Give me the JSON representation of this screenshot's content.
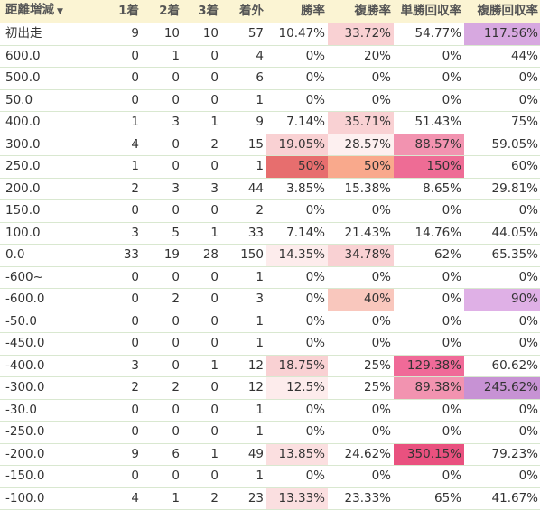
{
  "table": {
    "columns": [
      "距離増減",
      "1着",
      "2着",
      "3着",
      "着外",
      "勝率",
      "複勝率",
      "単勝回収率",
      "複勝回収率"
    ],
    "sort_icon": "sort-down-icon",
    "rows": [
      {
        "label": "初出走",
        "cells": [
          "9",
          "10",
          "10",
          "57",
          "10.47%",
          "33.72%",
          "54.77%",
          "117.56%"
        ],
        "bg": [
          "",
          "",
          "",
          "",
          "",
          "#f9d1d3",
          "",
          "#d7a8e0"
        ]
      },
      {
        "label": "600.0",
        "cells": [
          "0",
          "1",
          "0",
          "4",
          "0%",
          "20%",
          "0%",
          "44%"
        ],
        "bg": [
          "",
          "",
          "",
          "",
          "",
          "",
          "",
          ""
        ]
      },
      {
        "label": "500.0",
        "cells": [
          "0",
          "0",
          "0",
          "6",
          "0%",
          "0%",
          "0%",
          "0%"
        ],
        "bg": [
          "",
          "",
          "",
          "",
          "",
          "",
          "",
          ""
        ]
      },
      {
        "label": "50.0",
        "cells": [
          "0",
          "0",
          "0",
          "1",
          "0%",
          "0%",
          "0%",
          "0%"
        ],
        "bg": [
          "",
          "",
          "",
          "",
          "",
          "",
          "",
          ""
        ]
      },
      {
        "label": "400.0",
        "cells": [
          "1",
          "3",
          "1",
          "9",
          "7.14%",
          "35.71%",
          "51.43%",
          "75%"
        ],
        "bg": [
          "",
          "",
          "",
          "",
          "",
          "#f9d1d3",
          "",
          ""
        ]
      },
      {
        "label": "300.0",
        "cells": [
          "4",
          "0",
          "2",
          "15",
          "19.05%",
          "28.57%",
          "88.57%",
          "59.05%"
        ],
        "bg": [
          "",
          "",
          "",
          "",
          "#f9d1d3",
          "#fdf0f0",
          "#f293b0",
          ""
        ]
      },
      {
        "label": "250.0",
        "cells": [
          "1",
          "0",
          "0",
          "1",
          "50%",
          "50%",
          "150%",
          "60%"
        ],
        "bg": [
          "",
          "",
          "",
          "",
          "#e76e6e",
          "#f9a98c",
          "#ee6c95",
          ""
        ]
      },
      {
        "label": "200.0",
        "cells": [
          "2",
          "3",
          "3",
          "44",
          "3.85%",
          "15.38%",
          "8.65%",
          "29.81%"
        ],
        "bg": [
          "",
          "",
          "",
          "",
          "",
          "",
          "",
          ""
        ]
      },
      {
        "label": "150.0",
        "cells": [
          "0",
          "0",
          "0",
          "2",
          "0%",
          "0%",
          "0%",
          "0%"
        ],
        "bg": [
          "",
          "",
          "",
          "",
          "",
          "",
          "",
          ""
        ]
      },
      {
        "label": "100.0",
        "cells": [
          "3",
          "5",
          "1",
          "33",
          "7.14%",
          "21.43%",
          "14.76%",
          "44.05%"
        ],
        "bg": [
          "",
          "",
          "",
          "",
          "",
          "",
          "",
          ""
        ]
      },
      {
        "label": "0.0",
        "cells": [
          "33",
          "19",
          "28",
          "150",
          "14.35%",
          "34.78%",
          "62%",
          "65.35%"
        ],
        "bg": [
          "",
          "",
          "",
          "",
          "#fdecec",
          "#f9d1d3",
          "",
          ""
        ]
      },
      {
        "label": "-600~",
        "cells": [
          "0",
          "0",
          "0",
          "1",
          "0%",
          "0%",
          "0%",
          "0%"
        ],
        "bg": [
          "",
          "",
          "",
          "",
          "",
          "",
          "",
          ""
        ]
      },
      {
        "label": "-600.0",
        "cells": [
          "0",
          "2",
          "0",
          "3",
          "0%",
          "40%",
          "0%",
          "90%"
        ],
        "bg": [
          "",
          "",
          "",
          "",
          "",
          "#f9c7bd",
          "",
          "#dfb0e6"
        ]
      },
      {
        "label": "-50.0",
        "cells": [
          "0",
          "0",
          "0",
          "1",
          "0%",
          "0%",
          "0%",
          "0%"
        ],
        "bg": [
          "",
          "",
          "",
          "",
          "",
          "",
          "",
          ""
        ]
      },
      {
        "label": "-450.0",
        "cells": [
          "0",
          "0",
          "0",
          "1",
          "0%",
          "0%",
          "0%",
          "0%"
        ],
        "bg": [
          "",
          "",
          "",
          "",
          "",
          "",
          "",
          ""
        ]
      },
      {
        "label": "-400.0",
        "cells": [
          "3",
          "0",
          "1",
          "12",
          "18.75%",
          "25%",
          "129.38%",
          "60.62%"
        ],
        "bg": [
          "",
          "",
          "",
          "",
          "#f9d1d3",
          "",
          "#f06a98",
          ""
        ]
      },
      {
        "label": "-300.0",
        "cells": [
          "2",
          "2",
          "0",
          "12",
          "12.5%",
          "25%",
          "89.38%",
          "245.62%"
        ],
        "bg": [
          "",
          "",
          "",
          "",
          "#fdecec",
          "",
          "#f293b0",
          "#c792d4"
        ]
      },
      {
        "label": "-30.0",
        "cells": [
          "0",
          "0",
          "0",
          "1",
          "0%",
          "0%",
          "0%",
          "0%"
        ],
        "bg": [
          "",
          "",
          "",
          "",
          "",
          "",
          "",
          ""
        ]
      },
      {
        "label": "-250.0",
        "cells": [
          "0",
          "0",
          "0",
          "1",
          "0%",
          "0%",
          "0%",
          "0%"
        ],
        "bg": [
          "",
          "",
          "",
          "",
          "",
          "",
          "",
          ""
        ]
      },
      {
        "label": "-200.0",
        "cells": [
          "9",
          "6",
          "1",
          "49",
          "13.85%",
          "24.62%",
          "350.15%",
          "79.23%"
        ],
        "bg": [
          "",
          "",
          "",
          "",
          "#fbdfe0",
          "",
          "#e9517f",
          ""
        ]
      },
      {
        "label": "-150.0",
        "cells": [
          "0",
          "0",
          "0",
          "1",
          "0%",
          "0%",
          "0%",
          "0%"
        ],
        "bg": [
          "",
          "",
          "",
          "",
          "",
          "",
          "",
          ""
        ]
      },
      {
        "label": "-100.0",
        "cells": [
          "4",
          "1",
          "2",
          "23",
          "13.33%",
          "23.33%",
          "65%",
          "41.67%"
        ],
        "bg": [
          "",
          "",
          "",
          "",
          "#fbdfe0",
          "",
          "",
          ""
        ]
      }
    ]
  }
}
